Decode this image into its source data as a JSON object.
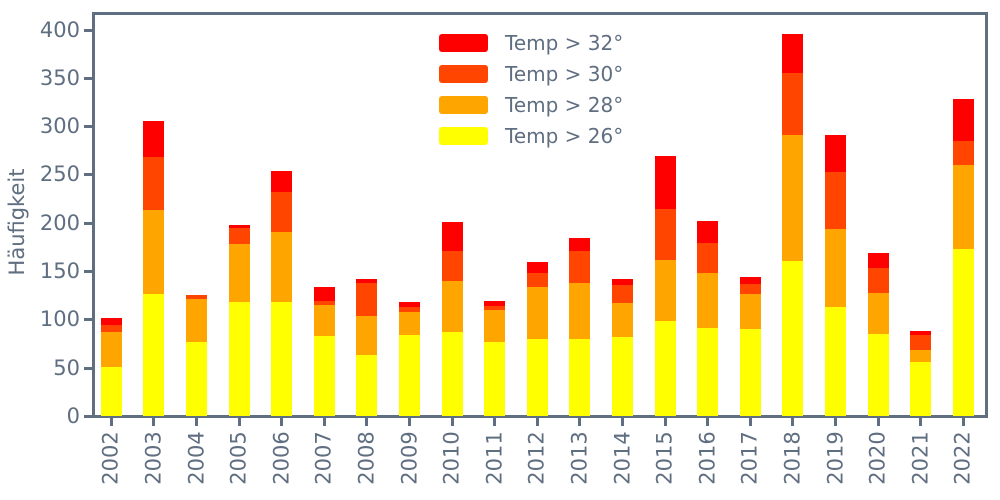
{
  "chart_data": {
    "type": "bar",
    "stacked": true,
    "title": "",
    "xlabel": "",
    "ylabel": "Häufigkeit",
    "categories": [
      "2002",
      "2003",
      "2004",
      "2005",
      "2006",
      "2007",
      "2008",
      "2009",
      "2010",
      "2011",
      "2012",
      "2013",
      "2014",
      "2015",
      "2016",
      "2017",
      "2018",
      "2019",
      "2020",
      "2021",
      "2022"
    ],
    "series": [
      {
        "name": "Temp > 26°",
        "color": "#ffff00",
        "values": [
          51,
          127,
          77,
          119,
          118,
          83,
          64,
          84,
          87,
          77,
          80,
          80,
          82,
          99,
          92,
          91,
          161,
          113,
          85,
          56,
          173
        ]
      },
      {
        "name": "Temp > 28°",
        "color": "#ffa500",
        "values": [
          36,
          87,
          45,
          60,
          73,
          32,
          40,
          24,
          53,
          33,
          54,
          58,
          35,
          63,
          56,
          36,
          130,
          81,
          43,
          13,
          87
        ]
      },
      {
        "name": "Temp > 30°",
        "color": "#ff4500",
        "values": [
          8,
          55,
          4,
          16,
          41,
          5,
          34,
          5,
          31,
          4,
          14,
          33,
          19,
          53,
          32,
          10,
          65,
          59,
          26,
          15,
          25
        ]
      },
      {
        "name": "Temp > 32°",
        "color": "#ff0000",
        "values": [
          7,
          37,
          0,
          3,
          22,
          14,
          4,
          6,
          30,
          6,
          12,
          14,
          6,
          55,
          22,
          7,
          40,
          38,
          15,
          5,
          44
        ]
      }
    ],
    "totals": [
      102,
      306,
      126,
      198,
      254,
      134,
      142,
      119,
      201,
      120,
      160,
      185,
      142,
      270,
      202,
      144,
      396,
      291,
      169,
      89,
      329
    ],
    "yticks": [
      0,
      50,
      100,
      150,
      200,
      250,
      300,
      350,
      400
    ],
    "ylim": [
      0,
      414
    ],
    "grid": false,
    "legend_position": "upper center, inside plot, no frame, order top-to-bottom from hottest",
    "axis_color": "#5f6e80"
  }
}
